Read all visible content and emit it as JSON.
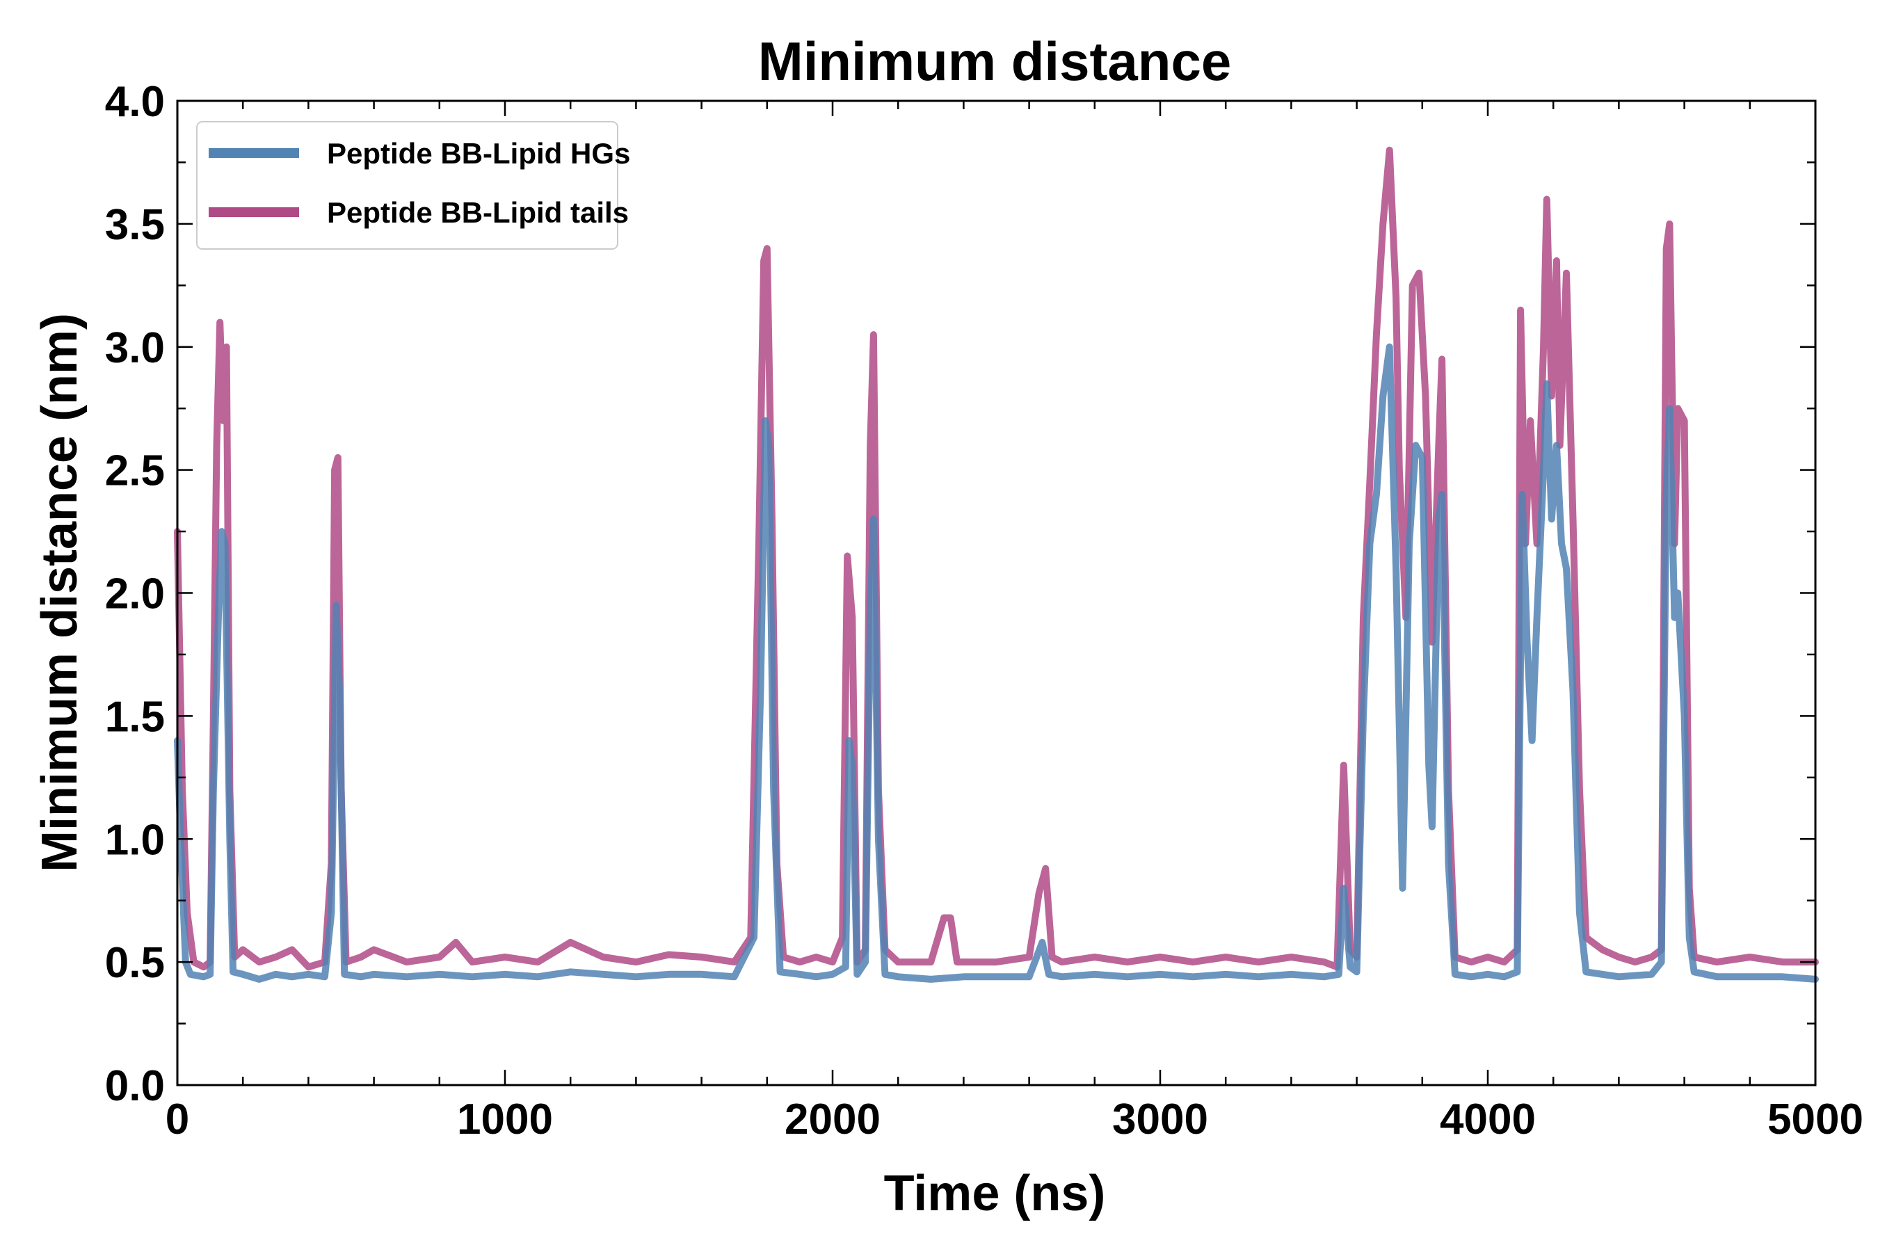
{
  "chart_data": {
    "type": "line",
    "title": "Minimum distance",
    "xlabel": "Time (ns)",
    "ylabel": "Minimum distance (nm)",
    "xlim": [
      0,
      5000
    ],
    "ylim": [
      0.0,
      4.0
    ],
    "xticks": [
      "0",
      "1000",
      "2000",
      "3000",
      "4000",
      "5000"
    ],
    "xtick_values": [
      0,
      1000,
      2000,
      3000,
      4000,
      5000
    ],
    "yticks": [
      "0.0",
      "0.5",
      "1.0",
      "1.5",
      "2.0",
      "2.5",
      "3.0",
      "3.5",
      "4.0"
    ],
    "ytick_values": [
      0.0,
      0.5,
      1.0,
      1.5,
      2.0,
      2.5,
      3.0,
      3.5,
      4.0
    ],
    "legend_position": "top-left",
    "series": [
      {
        "name": "Peptide BB-Lipid tails",
        "color": "#b04a86",
        "points": [
          [
            0,
            2.25
          ],
          [
            15,
            1.2
          ],
          [
            30,
            0.7
          ],
          [
            50,
            0.5
          ],
          [
            80,
            0.48
          ],
          [
            100,
            0.5
          ],
          [
            110,
            1.5
          ],
          [
            120,
            2.6
          ],
          [
            130,
            3.1
          ],
          [
            140,
            2.7
          ],
          [
            150,
            3.0
          ],
          [
            160,
            1.2
          ],
          [
            175,
            0.52
          ],
          [
            200,
            0.55
          ],
          [
            250,
            0.5
          ],
          [
            300,
            0.52
          ],
          [
            350,
            0.55
          ],
          [
            400,
            0.48
          ],
          [
            450,
            0.5
          ],
          [
            470,
            0.9
          ],
          [
            480,
            2.5
          ],
          [
            490,
            2.55
          ],
          [
            500,
            1.2
          ],
          [
            515,
            0.5
          ],
          [
            560,
            0.52
          ],
          [
            600,
            0.55
          ],
          [
            700,
            0.5
          ],
          [
            800,
            0.52
          ],
          [
            850,
            0.58
          ],
          [
            900,
            0.5
          ],
          [
            1000,
            0.52
          ],
          [
            1100,
            0.5
          ],
          [
            1200,
            0.58
          ],
          [
            1300,
            0.52
          ],
          [
            1400,
            0.5
          ],
          [
            1500,
            0.53
          ],
          [
            1600,
            0.52
          ],
          [
            1700,
            0.5
          ],
          [
            1750,
            0.6
          ],
          [
            1775,
            2.2
          ],
          [
            1790,
            3.35
          ],
          [
            1800,
            3.4
          ],
          [
            1815,
            2.3
          ],
          [
            1830,
            0.9
          ],
          [
            1850,
            0.52
          ],
          [
            1900,
            0.5
          ],
          [
            1950,
            0.52
          ],
          [
            2000,
            0.5
          ],
          [
            2030,
            0.6
          ],
          [
            2045,
            2.15
          ],
          [
            2060,
            1.9
          ],
          [
            2075,
            0.5
          ],
          [
            2100,
            0.55
          ],
          [
            2115,
            2.6
          ],
          [
            2125,
            3.05
          ],
          [
            2140,
            1.2
          ],
          [
            2160,
            0.55
          ],
          [
            2200,
            0.5
          ],
          [
            2300,
            0.5
          ],
          [
            2340,
            0.68
          ],
          [
            2360,
            0.68
          ],
          [
            2380,
            0.5
          ],
          [
            2500,
            0.5
          ],
          [
            2600,
            0.52
          ],
          [
            2630,
            0.78
          ],
          [
            2650,
            0.88
          ],
          [
            2670,
            0.52
          ],
          [
            2700,
            0.5
          ],
          [
            2800,
            0.52
          ],
          [
            2900,
            0.5
          ],
          [
            3000,
            0.52
          ],
          [
            3100,
            0.5
          ],
          [
            3200,
            0.52
          ],
          [
            3300,
            0.5
          ],
          [
            3400,
            0.52
          ],
          [
            3500,
            0.5
          ],
          [
            3540,
            0.48
          ],
          [
            3560,
            1.3
          ],
          [
            3580,
            0.55
          ],
          [
            3600,
            0.52
          ],
          [
            3620,
            1.9
          ],
          [
            3640,
            2.45
          ],
          [
            3660,
            3.05
          ],
          [
            3680,
            3.5
          ],
          [
            3700,
            3.8
          ],
          [
            3720,
            3.2
          ],
          [
            3730,
            2.5
          ],
          [
            3750,
            1.9
          ],
          [
            3770,
            3.25
          ],
          [
            3790,
            3.3
          ],
          [
            3810,
            2.8
          ],
          [
            3830,
            1.8
          ],
          [
            3850,
            2.6
          ],
          [
            3860,
            2.95
          ],
          [
            3880,
            1.2
          ],
          [
            3900,
            0.52
          ],
          [
            3950,
            0.5
          ],
          [
            4000,
            0.52
          ],
          [
            4050,
            0.5
          ],
          [
            4090,
            0.55
          ],
          [
            4100,
            3.15
          ],
          [
            4115,
            2.2
          ],
          [
            4130,
            2.7
          ],
          [
            4150,
            2.2
          ],
          [
            4170,
            3.0
          ],
          [
            4180,
            3.6
          ],
          [
            4195,
            2.8
          ],
          [
            4210,
            3.35
          ],
          [
            4220,
            2.6
          ],
          [
            4240,
            3.3
          ],
          [
            4260,
            2.3
          ],
          [
            4280,
            1.2
          ],
          [
            4300,
            0.6
          ],
          [
            4350,
            0.55
          ],
          [
            4400,
            0.52
          ],
          [
            4450,
            0.5
          ],
          [
            4500,
            0.52
          ],
          [
            4530,
            0.55
          ],
          [
            4545,
            3.4
          ],
          [
            4555,
            3.5
          ],
          [
            4570,
            2.2
          ],
          [
            4580,
            2.75
          ],
          [
            4600,
            2.7
          ],
          [
            4615,
            0.8
          ],
          [
            4630,
            0.52
          ],
          [
            4700,
            0.5
          ],
          [
            4800,
            0.52
          ],
          [
            4900,
            0.5
          ],
          [
            5000,
            0.5
          ]
        ]
      },
      {
        "name": "Peptide BB-Lipid HGs",
        "color": "#5183b3",
        "points": [
          [
            0,
            1.4
          ],
          [
            10,
            1.0
          ],
          [
            25,
            0.5
          ],
          [
            40,
            0.45
          ],
          [
            80,
            0.44
          ],
          [
            100,
            0.45
          ],
          [
            110,
            1.2
          ],
          [
            125,
            1.9
          ],
          [
            135,
            2.25
          ],
          [
            145,
            2.2
          ],
          [
            160,
            1.0
          ],
          [
            170,
            0.46
          ],
          [
            200,
            0.45
          ],
          [
            250,
            0.43
          ],
          [
            300,
            0.45
          ],
          [
            350,
            0.44
          ],
          [
            400,
            0.45
          ],
          [
            450,
            0.44
          ],
          [
            470,
            0.7
          ],
          [
            485,
            1.95
          ],
          [
            495,
            1.6
          ],
          [
            510,
            0.45
          ],
          [
            560,
            0.44
          ],
          [
            600,
            0.45
          ],
          [
            700,
            0.44
          ],
          [
            800,
            0.45
          ],
          [
            900,
            0.44
          ],
          [
            1000,
            0.45
          ],
          [
            1100,
            0.44
          ],
          [
            1200,
            0.46
          ],
          [
            1300,
            0.45
          ],
          [
            1400,
            0.44
          ],
          [
            1500,
            0.45
          ],
          [
            1600,
            0.45
          ],
          [
            1700,
            0.44
          ],
          [
            1760,
            0.6
          ],
          [
            1780,
            1.6
          ],
          [
            1795,
            2.7
          ],
          [
            1805,
            2.6
          ],
          [
            1820,
            1.2
          ],
          [
            1840,
            0.46
          ],
          [
            1900,
            0.45
          ],
          [
            1950,
            0.44
          ],
          [
            2000,
            0.45
          ],
          [
            2040,
            0.48
          ],
          [
            2050,
            1.4
          ],
          [
            2060,
            1.3
          ],
          [
            2075,
            0.45
          ],
          [
            2100,
            0.5
          ],
          [
            2115,
            1.9
          ],
          [
            2125,
            2.3
          ],
          [
            2140,
            1.0
          ],
          [
            2160,
            0.45
          ],
          [
            2200,
            0.44
          ],
          [
            2300,
            0.43
          ],
          [
            2400,
            0.44
          ],
          [
            2500,
            0.44
          ],
          [
            2600,
            0.44
          ],
          [
            2640,
            0.58
          ],
          [
            2660,
            0.45
          ],
          [
            2700,
            0.44
          ],
          [
            2800,
            0.45
          ],
          [
            2900,
            0.44
          ],
          [
            3000,
            0.45
          ],
          [
            3100,
            0.44
          ],
          [
            3200,
            0.45
          ],
          [
            3300,
            0.44
          ],
          [
            3400,
            0.45
          ],
          [
            3500,
            0.44
          ],
          [
            3545,
            0.45
          ],
          [
            3560,
            0.8
          ],
          [
            3580,
            0.48
          ],
          [
            3600,
            0.46
          ],
          [
            3620,
            1.5
          ],
          [
            3640,
            2.2
          ],
          [
            3660,
            2.4
          ],
          [
            3680,
            2.8
          ],
          [
            3700,
            3.0
          ],
          [
            3720,
            2.1
          ],
          [
            3740,
            0.8
          ],
          [
            3760,
            2.2
          ],
          [
            3780,
            2.6
          ],
          [
            3800,
            2.55
          ],
          [
            3820,
            1.3
          ],
          [
            3830,
            1.05
          ],
          [
            3850,
            2.3
          ],
          [
            3860,
            2.4
          ],
          [
            3880,
            0.9
          ],
          [
            3900,
            0.45
          ],
          [
            3950,
            0.44
          ],
          [
            4000,
            0.45
          ],
          [
            4050,
            0.44
          ],
          [
            4090,
            0.46
          ],
          [
            4105,
            2.4
          ],
          [
            4120,
            1.8
          ],
          [
            4135,
            1.4
          ],
          [
            4150,
            1.9
          ],
          [
            4170,
            2.5
          ],
          [
            4180,
            2.85
          ],
          [
            4195,
            2.3
          ],
          [
            4210,
            2.6
          ],
          [
            4225,
            2.2
          ],
          [
            4240,
            2.1
          ],
          [
            4260,
            1.6
          ],
          [
            4280,
            0.7
          ],
          [
            4300,
            0.46
          ],
          [
            4400,
            0.44
          ],
          [
            4500,
            0.45
          ],
          [
            4530,
            0.5
          ],
          [
            4545,
            2.4
          ],
          [
            4555,
            2.75
          ],
          [
            4570,
            1.9
          ],
          [
            4580,
            2.0
          ],
          [
            4600,
            1.5
          ],
          [
            4615,
            0.6
          ],
          [
            4630,
            0.46
          ],
          [
            4700,
            0.44
          ],
          [
            4800,
            0.44
          ],
          [
            4900,
            0.44
          ],
          [
            5000,
            0.43
          ]
        ]
      }
    ],
    "legend": [
      {
        "label": "Peptide BB-Lipid HGs",
        "color": "#5183b3"
      },
      {
        "label": "Peptide BB-Lipid tails",
        "color": "#b04a86"
      }
    ]
  }
}
